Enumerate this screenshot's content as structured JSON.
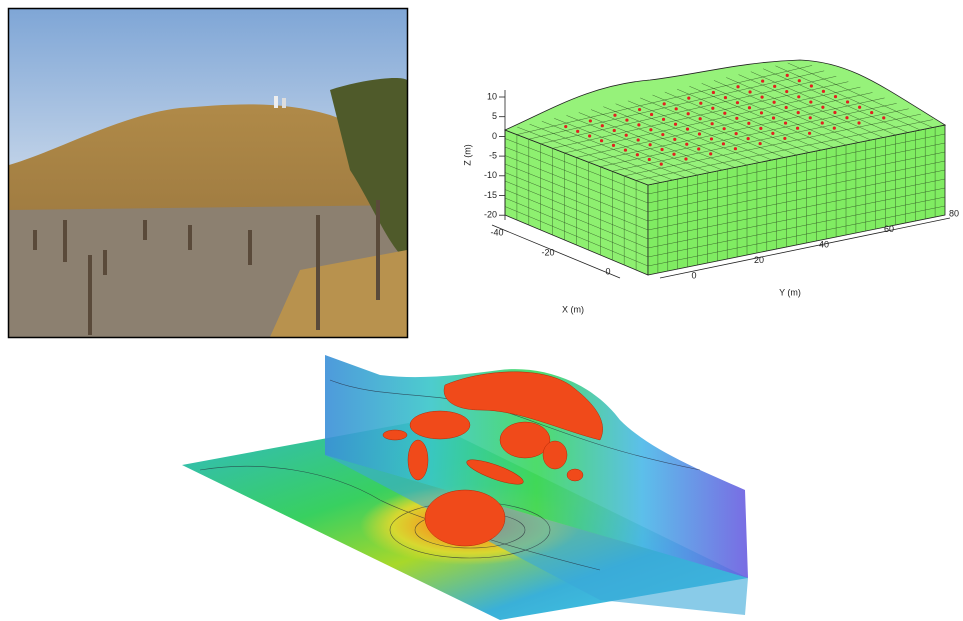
{
  "mesh_plot": {
    "z_label": "Z (m)",
    "x_label": "X (m)",
    "y_label": "Y (m)",
    "z_ticks": [
      10,
      5,
      0,
      -5,
      -10,
      -15,
      -20
    ],
    "x_ticks": [
      -40,
      -20,
      0
    ],
    "y_ticks": [
      0,
      20,
      40,
      60,
      80
    ]
  }
}
